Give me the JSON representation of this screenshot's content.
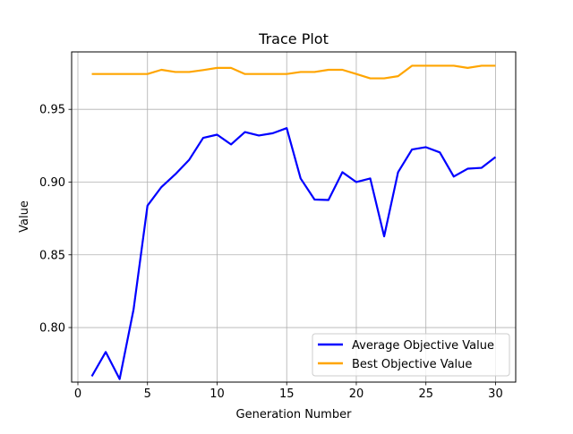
{
  "chart_data": {
    "type": "line",
    "title": "Trace Plot",
    "xlabel": "Generation Number",
    "ylabel": "Value",
    "xlim": [
      -0.45,
      31.45
    ],
    "ylim": [
      0.7625,
      0.9895
    ],
    "x_ticks": [
      0,
      5,
      10,
      15,
      20,
      25,
      30
    ],
    "x_tick_labels": [
      "0",
      "5",
      "10",
      "15",
      "20",
      "25",
      "30"
    ],
    "y_ticks": [
      0.8,
      0.85,
      0.9,
      0.95
    ],
    "y_tick_labels": [
      "0.80",
      "0.85",
      "0.90",
      "0.95"
    ],
    "grid": true,
    "legend_position": "lower-right",
    "x": [
      1,
      2,
      3,
      4,
      5,
      6,
      7,
      8,
      9,
      10,
      11,
      12,
      13,
      14,
      15,
      16,
      17,
      18,
      19,
      20,
      21,
      22,
      23,
      24,
      25,
      26,
      27,
      28,
      29,
      30
    ],
    "series": [
      {
        "name": "Average Objective Value",
        "color": "#0000ff",
        "values": [
          0.7665,
          0.7832,
          0.7646,
          0.8125,
          0.8838,
          0.8966,
          0.9054,
          0.9154,
          0.9304,
          0.9326,
          0.9259,
          0.9344,
          0.932,
          0.9336,
          0.9371,
          0.9025,
          0.888,
          0.8877,
          0.9068,
          0.9,
          0.9025,
          0.8627,
          0.9068,
          0.9224,
          0.924,
          0.9204,
          0.9038,
          0.9092,
          0.9098,
          0.9172
        ]
      },
      {
        "name": "Best Objective Value",
        "color": "#ffa500",
        "values": [
          0.9743,
          0.9743,
          0.9743,
          0.9743,
          0.9743,
          0.9772,
          0.9757,
          0.9757,
          0.977,
          0.9785,
          0.9785,
          0.9743,
          0.9743,
          0.9743,
          0.9743,
          0.9757,
          0.9757,
          0.9772,
          0.9772,
          0.9743,
          0.9713,
          0.9713,
          0.9728,
          0.98,
          0.98,
          0.98,
          0.98,
          0.9785,
          0.98,
          0.98
        ]
      }
    ]
  }
}
